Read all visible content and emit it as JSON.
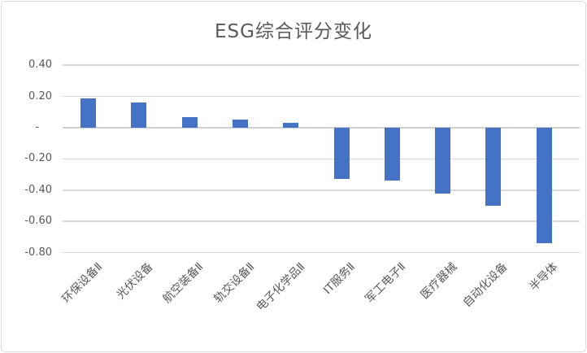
{
  "chart_data": {
    "type": "bar",
    "title": "ESG综合评分变化",
    "categories": [
      "环保设备Ⅱ",
      "光伏设备",
      "航空装备Ⅱ",
      "轨交设备Ⅱ",
      "电子化学品Ⅱ",
      "IT服务Ⅱ",
      "军工电子Ⅱ",
      "医疗器械",
      "自动化设备",
      "半导体"
    ],
    "values": [
      0.19,
      0.16,
      0.07,
      0.05,
      0.03,
      -0.33,
      -0.34,
      -0.42,
      -0.5,
      -0.74
    ],
    "xlabel": "",
    "ylabel": "",
    "ylim": [
      -0.8,
      0.4
    ],
    "ytick_step": 0.2,
    "ytick_labels": [
      "0.40",
      "0.20",
      "-",
      "-0.20",
      "-0.40",
      "-0.60",
      "-0.80"
    ],
    "grid": true,
    "legend": false,
    "bar_color": "#4472C4",
    "title_color": "#595959",
    "axis_text_color": "#595959",
    "gridline_color": "#D9D9D9"
  }
}
